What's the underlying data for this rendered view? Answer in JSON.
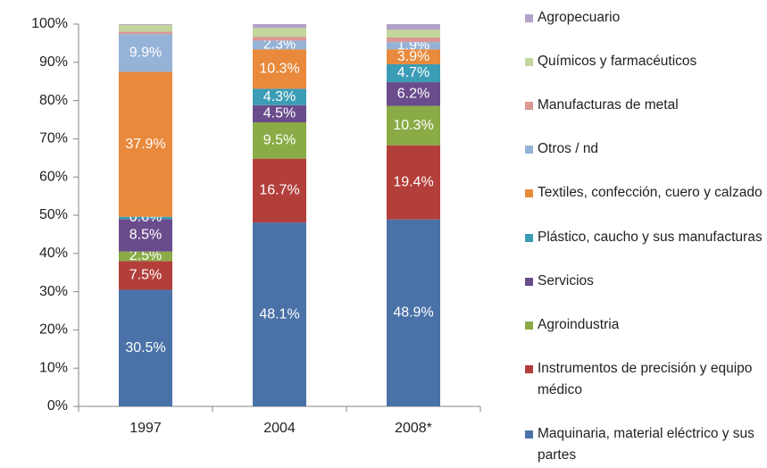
{
  "chart_data": {
    "type": "stacked_bar",
    "categories": [
      "1997",
      "2004",
      "2008*"
    ],
    "series": [
      {
        "name": "Maquinaria, material eléctrico y sus partes",
        "color": "#4a72a8",
        "values": [
          30.5,
          48.1,
          48.9
        ],
        "value_labels": [
          "30.5%",
          "48.1%",
          "48.9%"
        ]
      },
      {
        "name": "Instrumentos de precisión y equipo médico",
        "color": "#b33f3b",
        "values": [
          7.5,
          16.7,
          19.4
        ],
        "value_labels": [
          "7.5%",
          "16.7%",
          "19.4%"
        ]
      },
      {
        "name": "Agroindustria",
        "color": "#8aab46",
        "values": [
          2.5,
          9.5,
          10.3
        ],
        "value_labels": [
          "2.5%",
          "9.5%",
          "10.3%"
        ]
      },
      {
        "name": "Servicios",
        "color": "#6a4c8c",
        "values": [
          8.5,
          4.5,
          6.2
        ],
        "value_labels": [
          "8.5%",
          "4.5%",
          "6.2%"
        ]
      },
      {
        "name": "Plástico, caucho y sus manufacturas",
        "color": "#3b9cb5",
        "values": [
          0.6,
          4.3,
          4.7
        ],
        "value_labels": [
          "0.6%",
          "4.3%",
          "4.7%"
        ]
      },
      {
        "name": "Textiles, confección, cuero y calzado",
        "color": "#e8893b",
        "values": [
          37.9,
          10.3,
          3.9
        ],
        "value_labels": [
          "37.9%",
          "10.3%",
          "3.9%"
        ]
      },
      {
        "name": "Otros / nd",
        "color": "#95b3d7",
        "values": [
          9.9,
          2.3,
          1.9
        ],
        "value_labels": [
          "9.9%",
          "2.3%",
          "1.9%"
        ]
      },
      {
        "name": "Manufacturas de metal",
        "color": "#d99694",
        "values": [
          0.6,
          1.0,
          1.2
        ],
        "value_labels": [
          null,
          null,
          null
        ]
      },
      {
        "name": "Químicos y farmacéuticos",
        "color": "#c3d69b",
        "values": [
          1.8,
          2.3,
          2.0
        ],
        "value_labels": [
          null,
          null,
          null
        ]
      },
      {
        "name": "Agropecuario",
        "color": "#b3a2c7",
        "values": [
          0.2,
          1.0,
          1.5
        ],
        "value_labels": [
          null,
          null,
          null
        ]
      }
    ],
    "ylim": [
      0,
      100
    ],
    "yticks": [
      {
        "value": 0,
        "label": "0%"
      },
      {
        "value": 10,
        "label": "10%"
      },
      {
        "value": 20,
        "label": "20%"
      },
      {
        "value": 30,
        "label": "30%"
      },
      {
        "value": 40,
        "label": "40%"
      },
      {
        "value": 50,
        "label": "50%"
      },
      {
        "value": 60,
        "label": "60%"
      },
      {
        "value": 70,
        "label": "70%"
      },
      {
        "value": 80,
        "label": "80%"
      },
      {
        "value": 90,
        "label": "90%"
      },
      {
        "value": 100,
        "label": "100%"
      }
    ],
    "legend": "right"
  }
}
